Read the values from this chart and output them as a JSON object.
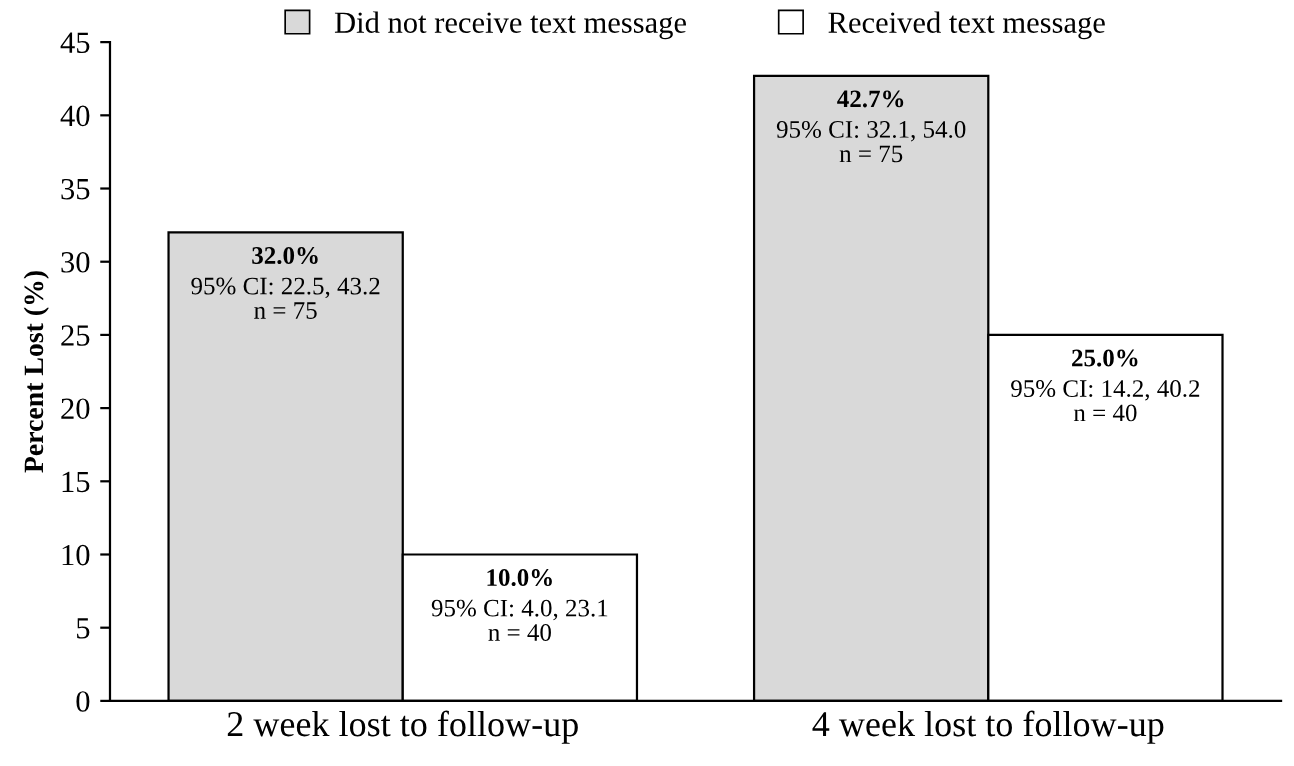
{
  "chart_data": {
    "type": "bar",
    "ylabel": "Percent Lost (%)",
    "categories": [
      "2 week lost to follow-up",
      "4 week lost to follow-up"
    ],
    "series": [
      {
        "name": "Did not receive text message",
        "color": "#d9d9d9",
        "values": [
          32.0,
          42.7
        ],
        "value_labels": [
          "32.0%\n95% CI: 22.5, 43.2\nn = 75",
          "42.7%\n95% CI: 32.1, 54.0\nn = 75"
        ]
      },
      {
        "name": "Received text message",
        "color": "#ffffff",
        "values": [
          10.0,
          25.0
        ],
        "value_labels": [
          "10.0%\n95% CI: 4.0, 23.1\nn = 40",
          "25.0%\n95% CI: 14.2, 40.2\nn = 40"
        ]
      }
    ],
    "ylim": [
      0,
      45
    ],
    "yticks": [
      0,
      5,
      10,
      15,
      20,
      25,
      30,
      35,
      40,
      45
    ],
    "grid": false,
    "legend": "top"
  }
}
